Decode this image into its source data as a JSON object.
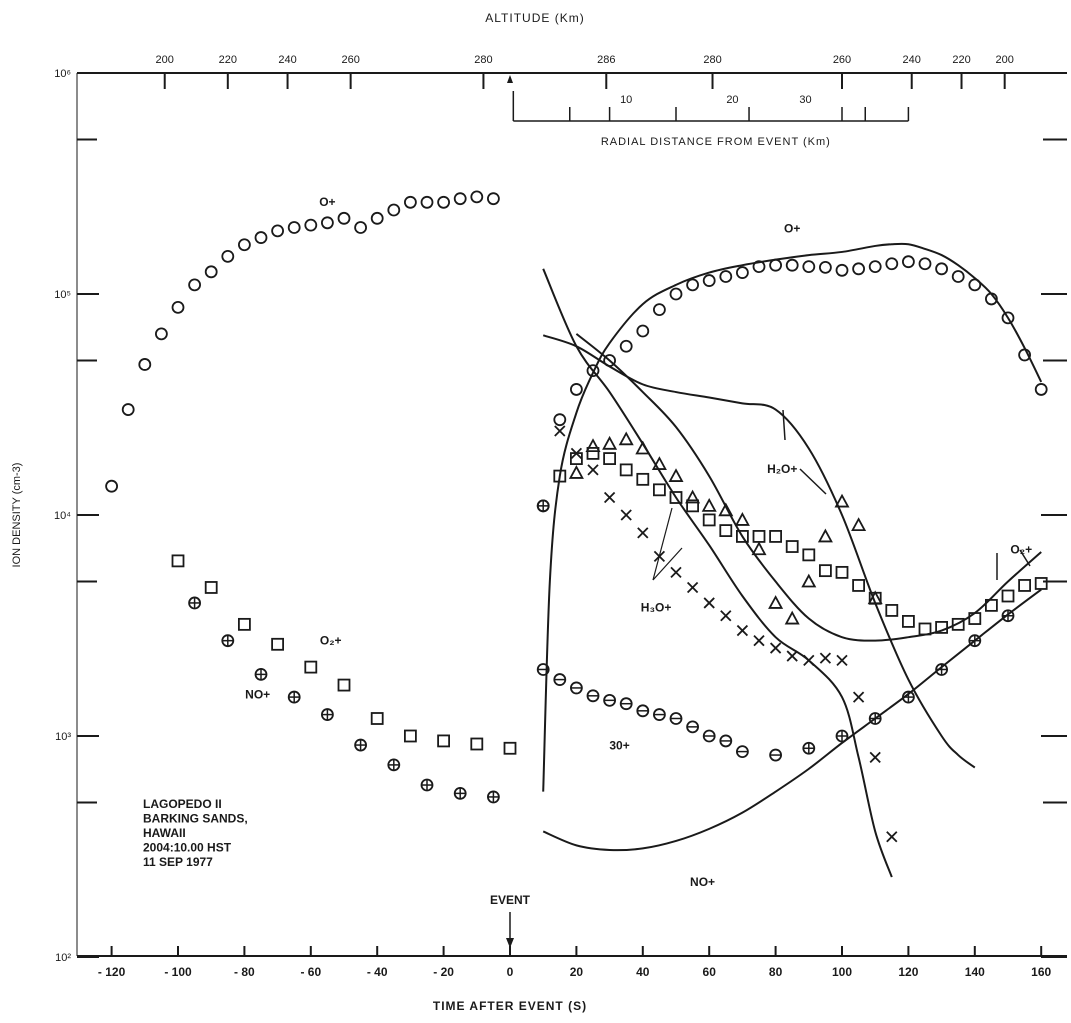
{
  "chart_data": {
    "type": "scatter",
    "title": "",
    "xlabel": "TIME AFTER EVENT (S)",
    "ylabel": "ION DENSITY (cm-3)",
    "top_axis_label": "ALTITUDE (Km)",
    "radial_axis_label": "RADIAL DISTANCE FROM EVENT (Km)",
    "event_label": "EVENT",
    "y_scale": "log",
    "xlim": [
      -125,
      165
    ],
    "ylim": [
      100,
      1000000
    ],
    "grid": false,
    "x_ticks": [
      -120,
      -100,
      -80,
      -60,
      -40,
      -20,
      0,
      20,
      40,
      60,
      80,
      100,
      120,
      140,
      160
    ],
    "y_ticks": [
      {
        "value": 100,
        "label": "10²"
      },
      {
        "value": 1000,
        "label": "10³"
      },
      {
        "value": 10000,
        "label": "10⁴"
      },
      {
        "value": 100000,
        "label": "10⁵"
      },
      {
        "value": 1000000,
        "label": "10⁶"
      }
    ],
    "altitude_ticks": [
      {
        "t": -104,
        "label": "200"
      },
      {
        "t": -85,
        "label": "220"
      },
      {
        "t": -67,
        "label": "240"
      },
      {
        "t": -48,
        "label": "260"
      },
      {
        "t": -8,
        "label": "280"
      },
      {
        "t": 29,
        "label": "286"
      },
      {
        "t": 61,
        "label": "280"
      },
      {
        "t": 100,
        "label": "260"
      },
      {
        "t": 121,
        "label": "240"
      },
      {
        "t": 136,
        "label": "220"
      },
      {
        "t": 149,
        "label": "200"
      }
    ],
    "radial_ticks": [
      {
        "t": 35,
        "label": "10"
      },
      {
        "t": 67,
        "label": "20"
      },
      {
        "t": 89,
        "label": "30"
      }
    ],
    "info_text": [
      "LAGOPEDO II",
      "BARKING SANDS,",
      "HAWAII",
      "2004:10.00 HST",
      "11 SEP 1977"
    ],
    "annotations": [
      {
        "text": "O+",
        "x": -55,
        "y": 250000
      },
      {
        "text": "O₂+",
        "x": -54,
        "y": 2600
      },
      {
        "text": "NO+",
        "x": -76,
        "y": 1480
      },
      {
        "text": "O+",
        "x": 85,
        "y": 190000
      },
      {
        "text": "H₂O+",
        "x": 82,
        "y": 15500
      },
      {
        "text": "H₃O+",
        "x": 44,
        "y": 3650
      },
      {
        "text": "30+",
        "x": 33,
        "y": 870
      },
      {
        "text": "NO+",
        "x": 58,
        "y": 210
      },
      {
        "text": "O₂+",
        "x": 154,
        "y": 6700
      }
    ],
    "series": [
      {
        "name": "O+",
        "marker": "circle",
        "x": [
          -120,
          -115,
          -110,
          -105,
          -100,
          -95,
          -90,
          -85,
          -80,
          -75,
          -70,
          -65,
          -60,
          -55,
          -50,
          -45,
          -40,
          -35,
          -30,
          -25,
          -20,
          -15,
          -10,
          -5,
          10,
          15,
          20,
          25,
          30,
          35,
          40,
          45,
          50,
          55,
          60,
          65,
          70,
          75,
          80,
          85,
          90,
          95,
          100,
          105,
          110,
          115,
          120,
          125,
          130,
          135,
          140,
          145,
          150,
          155,
          160
        ],
        "values": [
          13500,
          30000,
          48000,
          66000,
          87000,
          110000,
          126000,
          148000,
          167000,
          180000,
          193000,
          200000,
          205000,
          210000,
          220000,
          200000,
          220000,
          240000,
          260000,
          260000,
          260000,
          270000,
          275000,
          270000,
          11000,
          27000,
          37000,
          45000,
          50000,
          58000,
          68000,
          85000,
          100000,
          110000,
          115000,
          120000,
          125000,
          133000,
          135000,
          135000,
          133000,
          132000,
          128000,
          130000,
          133000,
          137000,
          140000,
          137000,
          130000,
          120000,
          110000,
          95000,
          78000,
          53000,
          37000
        ]
      },
      {
        "name": "O₂+",
        "marker": "square",
        "x": [
          -100,
          -90,
          -80,
          -70,
          -60,
          -50,
          -40,
          -30,
          -20,
          -10,
          0,
          15,
          20,
          25,
          30,
          35,
          40,
          45,
          50,
          55,
          60,
          65,
          70,
          75,
          80,
          85,
          90,
          95,
          100,
          105,
          110,
          115,
          120,
          125,
          130,
          135,
          140,
          145,
          150,
          155,
          160
        ],
        "values": [
          6200,
          4700,
          3200,
          2600,
          2050,
          1700,
          1200,
          1000,
          950,
          920,
          880,
          15000,
          18000,
          19000,
          18000,
          16000,
          14500,
          13000,
          12000,
          11000,
          9500,
          8500,
          8000,
          8000,
          8000,
          7200,
          6600,
          5600,
          5500,
          4800,
          4200,
          3700,
          3300,
          3050,
          3100,
          3200,
          3400,
          3900,
          4300,
          4800,
          4900
        ]
      },
      {
        "name": "NO+",
        "marker": "circle-plus",
        "x": [
          -95,
          -85,
          -75,
          -65,
          -55,
          -45,
          -35,
          -25,
          -15,
          -5,
          10,
          90,
          100,
          110,
          120,
          130,
          140,
          150
        ],
        "values": [
          4000,
          2700,
          1900,
          1500,
          1250,
          910,
          740,
          600,
          550,
          530,
          11000,
          880,
          1000,
          1200,
          1500,
          2000,
          2700,
          3500
        ]
      },
      {
        "name": "H₂O+",
        "marker": "triangle",
        "x": [
          20,
          25,
          30,
          35,
          40,
          45,
          50,
          55,
          60,
          65,
          70,
          75,
          80,
          85,
          90,
          95,
          100,
          105,
          110
        ],
        "values": [
          15500,
          20500,
          21000,
          22000,
          20000,
          17000,
          15000,
          12000,
          11000,
          10500,
          9500,
          7000,
          4000,
          3400,
          5000,
          8000,
          11500,
          9000,
          4200
        ]
      },
      {
        "name": "H₃O+",
        "marker": "cross",
        "x": [
          15,
          20,
          25,
          30,
          35,
          40,
          45,
          50,
          55,
          60,
          65,
          70,
          75,
          80,
          85,
          90,
          95,
          100,
          105,
          110,
          115
        ],
        "values": [
          24000,
          19000,
          16000,
          12000,
          10000,
          8300,
          6500,
          5500,
          4700,
          4000,
          3500,
          3000,
          2700,
          2500,
          2300,
          2200,
          2250,
          2200,
          1500,
          800,
          350
        ]
      },
      {
        "name": "30+",
        "marker": "circle-minus",
        "x": [
          10,
          15,
          20,
          25,
          30,
          35,
          40,
          45,
          50,
          55,
          60,
          65,
          70,
          80
        ],
        "values": [
          2000,
          1800,
          1650,
          1520,
          1450,
          1400,
          1300,
          1250,
          1200,
          1100,
          1000,
          950,
          850,
          820
        ]
      }
    ],
    "curves": [
      {
        "name": "O+ model",
        "x": [
          10,
          12,
          15,
          20,
          25,
          30,
          40,
          50,
          60,
          70,
          80,
          90,
          100,
          110,
          115,
          120,
          125,
          130,
          135,
          140,
          145,
          150,
          155,
          160
        ],
        "values": [
          560,
          5000,
          15000,
          29000,
          44000,
          60000,
          90000,
          110000,
          125000,
          135000,
          143000,
          150000,
          155000,
          165000,
          168000,
          168000,
          160000,
          150000,
          135000,
          118000,
          100000,
          78000,
          57000,
          40000
        ]
      },
      {
        "name": "H₂O+ model",
        "x": [
          10,
          20,
          30,
          40,
          50,
          60,
          70,
          80,
          90,
          100,
          110,
          120,
          130,
          135,
          140
        ],
        "values": [
          65000,
          58000,
          47000,
          39000,
          36000,
          34000,
          32000,
          30000,
          20000,
          10000,
          4000,
          1800,
          1000,
          820,
          720
        ]
      },
      {
        "name": "H₃O+ model",
        "x": [
          10,
          20,
          30,
          40,
          50,
          60,
          70,
          80,
          90,
          100,
          105,
          110,
          115
        ],
        "values": [
          130000,
          58000,
          36000,
          21000,
          12000,
          7300,
          4300,
          2800,
          2200,
          1500,
          800,
          370,
          230
        ]
      },
      {
        "name": "O₂+ / H₂O+ model",
        "x": [
          20,
          30,
          40,
          50,
          60,
          70,
          80,
          90,
          100,
          110,
          120,
          130,
          140,
          150,
          160
        ],
        "values": [
          66000,
          50000,
          36000,
          25000,
          15000,
          8000,
          5000,
          3400,
          2800,
          2700,
          2800,
          3000,
          3600,
          5000,
          6800
        ]
      },
      {
        "name": "NO+ model",
        "x": [
          10,
          20,
          30,
          40,
          50,
          60,
          70,
          80,
          90,
          100,
          110,
          120,
          130,
          140,
          150,
          160
        ],
        "values": [
          370,
          320,
          305,
          310,
          335,
          380,
          450,
          560,
          710,
          930,
          1200,
          1550,
          2050,
          2700,
          3550,
          4600
        ]
      }
    ]
  }
}
